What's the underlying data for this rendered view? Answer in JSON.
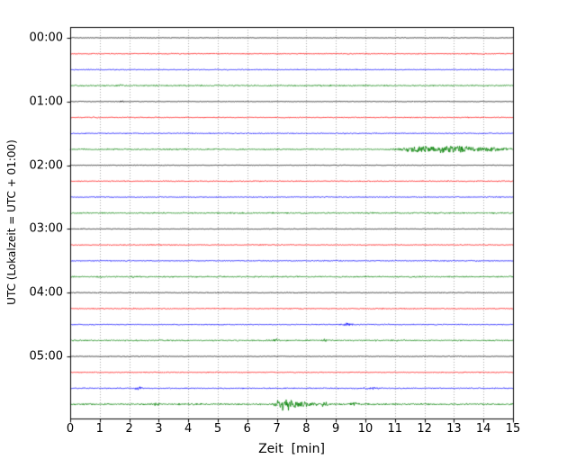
{
  "chart_data": {
    "type": "line",
    "subtype": "helicorder-seismogram-drumplot",
    "title": "",
    "xlabel": "Zeit  [min]",
    "ylabel": "UTC (Lokalzeit = UTC + 01:00)",
    "x_range": [
      0,
      15
    ],
    "x_ticks": [
      "0",
      "1",
      "2",
      "3",
      "4",
      "5",
      "6",
      "7",
      "8",
      "9",
      "10",
      "11",
      "12",
      "13",
      "14",
      "15"
    ],
    "y_tick_labels": [
      "00:00",
      "01:00",
      "02:00",
      "03:00",
      "04:00",
      "05:00"
    ],
    "minutes_per_line": 15,
    "lines_per_hour": 4,
    "grid": "vertical dotted gridline at every minute",
    "legend": "none",
    "colors": {
      "black": "#000000",
      "red": "#ff0000",
      "blue": "#0000ff",
      "green": "#008000"
    },
    "traces": [
      {
        "start_utc": "00:00",
        "color": "black",
        "noise": 0.5,
        "events": []
      },
      {
        "start_utc": "00:15",
        "color": "red",
        "noise": 0.7,
        "events": []
      },
      {
        "start_utc": "00:30",
        "color": "blue",
        "noise": 0.7,
        "events": []
      },
      {
        "start_utc": "00:45",
        "color": "green",
        "noise": 1.0,
        "events": [
          {
            "t": 1.7,
            "amp": 1.3,
            "dur": 0.25
          }
        ]
      },
      {
        "start_utc": "01:00",
        "color": "black",
        "noise": 0.5,
        "events": [
          {
            "t": 1.75,
            "amp": 0.9,
            "dur": 0.15
          }
        ]
      },
      {
        "start_utc": "01:15",
        "color": "red",
        "noise": 0.7,
        "events": []
      },
      {
        "start_utc": "01:30",
        "color": "blue",
        "noise": 0.7,
        "events": []
      },
      {
        "start_utc": "01:45",
        "color": "green",
        "noise": 1.0,
        "events": [
          {
            "t": 11.6,
            "amp": 1.8,
            "dur": 1.2
          },
          {
            "t": 12.8,
            "amp": 3.8,
            "dur": 2.2
          },
          {
            "t": 14.3,
            "amp": 1.4,
            "dur": 1.5
          }
        ]
      },
      {
        "start_utc": "02:00",
        "color": "black",
        "noise": 0.5,
        "events": []
      },
      {
        "start_utc": "02:15",
        "color": "red",
        "noise": 0.7,
        "events": []
      },
      {
        "start_utc": "02:30",
        "color": "blue",
        "noise": 0.7,
        "events": []
      },
      {
        "start_utc": "02:45",
        "color": "green",
        "noise": 1.0,
        "events": []
      },
      {
        "start_utc": "03:00",
        "color": "black",
        "noise": 0.5,
        "events": []
      },
      {
        "start_utc": "03:15",
        "color": "red",
        "noise": 0.7,
        "events": []
      },
      {
        "start_utc": "03:30",
        "color": "blue",
        "noise": 0.7,
        "events": []
      },
      {
        "start_utc": "03:45",
        "color": "green",
        "noise": 1.0,
        "events": []
      },
      {
        "start_utc": "04:00",
        "color": "black",
        "noise": 0.55,
        "events": []
      },
      {
        "start_utc": "04:15",
        "color": "red",
        "noise": 0.7,
        "events": []
      },
      {
        "start_utc": "04:30",
        "color": "blue",
        "noise": 0.75,
        "events": [
          {
            "t": 9.4,
            "amp": 2.2,
            "dur": 0.35
          }
        ]
      },
      {
        "start_utc": "04:45",
        "color": "green",
        "noise": 1.0,
        "events": [
          {
            "t": 7.0,
            "amp": 1.6,
            "dur": 0.25
          },
          {
            "t": 8.6,
            "amp": 1.3,
            "dur": 0.3
          }
        ]
      },
      {
        "start_utc": "05:00",
        "color": "black",
        "noise": 0.55,
        "events": []
      },
      {
        "start_utc": "05:15",
        "color": "red",
        "noise": 0.7,
        "events": []
      },
      {
        "start_utc": "05:30",
        "color": "blue",
        "noise": 0.8,
        "events": [
          {
            "t": 2.3,
            "amp": 1.8,
            "dur": 0.3
          },
          {
            "t": 10.2,
            "amp": 1.2,
            "dur": 0.5
          }
        ]
      },
      {
        "start_utc": "05:45",
        "color": "green",
        "noise": 1.2,
        "events": [
          {
            "t": 2.9,
            "amp": 1.8,
            "dur": 0.25
          },
          {
            "t": 7.25,
            "amp": 8.0,
            "dur": 0.5
          },
          {
            "t": 7.9,
            "amp": 2.8,
            "dur": 1.2
          },
          {
            "t": 8.6,
            "amp": 1.6,
            "dur": 0.3
          },
          {
            "t": 9.6,
            "amp": 1.4,
            "dur": 0.4
          }
        ]
      }
    ]
  }
}
